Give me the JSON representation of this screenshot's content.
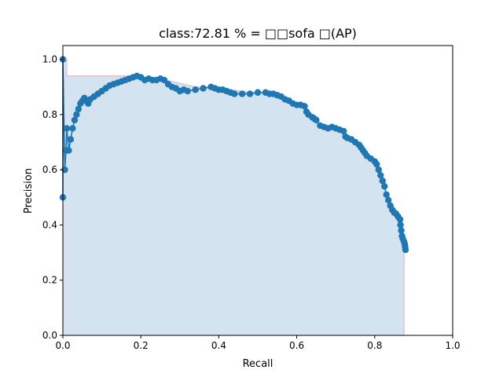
{
  "chart_data": {
    "type": "line",
    "title": "class:72.81 % = □□sofa □(AP)",
    "xlabel": "Recall",
    "ylabel": "Precision",
    "xlim": [
      0,
      1
    ],
    "ylim": [
      0,
      1.05
    ],
    "xticks": [
      "0.0",
      "0.2",
      "0.4",
      "0.6",
      "0.8",
      "1.0"
    ],
    "yticks": [
      "0.0",
      "0.2",
      "0.4",
      "0.6",
      "0.8",
      "1.0"
    ],
    "series": [
      {
        "color": "#1f77b4",
        "marker": "circle",
        "points": [
          [
            0.0,
            0.5
          ],
          [
            0.0,
            1.0
          ],
          [
            0.005,
            0.6
          ],
          [
            0.008,
            0.67
          ],
          [
            0.01,
            0.75
          ],
          [
            0.015,
            0.67
          ],
          [
            0.02,
            0.71
          ],
          [
            0.025,
            0.75
          ],
          [
            0.03,
            0.78
          ],
          [
            0.035,
            0.8
          ],
          [
            0.04,
            0.82
          ],
          [
            0.045,
            0.84
          ],
          [
            0.05,
            0.85
          ],
          [
            0.055,
            0.86
          ],
          [
            0.06,
            0.85
          ],
          [
            0.065,
            0.84
          ],
          [
            0.07,
            0.855
          ],
          [
            0.08,
            0.865
          ],
          [
            0.09,
            0.875
          ],
          [
            0.1,
            0.885
          ],
          [
            0.11,
            0.895
          ],
          [
            0.12,
            0.905
          ],
          [
            0.13,
            0.91
          ],
          [
            0.14,
            0.915
          ],
          [
            0.15,
            0.92
          ],
          [
            0.16,
            0.925
          ],
          [
            0.17,
            0.93
          ],
          [
            0.18,
            0.935
          ],
          [
            0.19,
            0.94
          ],
          [
            0.2,
            0.935
          ],
          [
            0.21,
            0.925
          ],
          [
            0.22,
            0.93
          ],
          [
            0.23,
            0.925
          ],
          [
            0.24,
            0.925
          ],
          [
            0.25,
            0.93
          ],
          [
            0.26,
            0.925
          ],
          [
            0.27,
            0.91
          ],
          [
            0.28,
            0.9
          ],
          [
            0.29,
            0.895
          ],
          [
            0.3,
            0.885
          ],
          [
            0.31,
            0.89
          ],
          [
            0.32,
            0.885
          ],
          [
            0.34,
            0.89
          ],
          [
            0.36,
            0.895
          ],
          [
            0.38,
            0.9
          ],
          [
            0.39,
            0.895
          ],
          [
            0.4,
            0.89
          ],
          [
            0.41,
            0.89
          ],
          [
            0.42,
            0.885
          ],
          [
            0.43,
            0.88
          ],
          [
            0.44,
            0.875
          ],
          [
            0.46,
            0.875
          ],
          [
            0.48,
            0.875
          ],
          [
            0.5,
            0.88
          ],
          [
            0.52,
            0.88
          ],
          [
            0.53,
            0.875
          ],
          [
            0.54,
            0.875
          ],
          [
            0.55,
            0.87
          ],
          [
            0.56,
            0.865
          ],
          [
            0.57,
            0.855
          ],
          [
            0.58,
            0.85
          ],
          [
            0.59,
            0.84
          ],
          [
            0.6,
            0.835
          ],
          [
            0.61,
            0.835
          ],
          [
            0.62,
            0.83
          ],
          [
            0.625,
            0.81
          ],
          [
            0.63,
            0.8
          ],
          [
            0.64,
            0.79
          ],
          [
            0.645,
            0.785
          ],
          [
            0.65,
            0.78
          ],
          [
            0.66,
            0.76
          ],
          [
            0.67,
            0.755
          ],
          [
            0.68,
            0.75
          ],
          [
            0.69,
            0.755
          ],
          [
            0.7,
            0.75
          ],
          [
            0.71,
            0.745
          ],
          [
            0.72,
            0.74
          ],
          [
            0.725,
            0.72
          ],
          [
            0.73,
            0.715
          ],
          [
            0.74,
            0.71
          ],
          [
            0.75,
            0.7
          ],
          [
            0.76,
            0.69
          ],
          [
            0.765,
            0.68
          ],
          [
            0.77,
            0.67
          ],
          [
            0.775,
            0.66
          ],
          [
            0.78,
            0.65
          ],
          [
            0.79,
            0.64
          ],
          [
            0.8,
            0.63
          ],
          [
            0.805,
            0.62
          ],
          [
            0.81,
            0.6
          ],
          [
            0.815,
            0.58
          ],
          [
            0.82,
            0.56
          ],
          [
            0.825,
            0.54
          ],
          [
            0.83,
            0.51
          ],
          [
            0.835,
            0.49
          ],
          [
            0.84,
            0.47
          ],
          [
            0.845,
            0.455
          ],
          [
            0.85,
            0.445
          ],
          [
            0.855,
            0.44
          ],
          [
            0.86,
            0.43
          ],
          [
            0.865,
            0.42
          ],
          [
            0.866,
            0.4
          ],
          [
            0.868,
            0.38
          ],
          [
            0.87,
            0.36
          ],
          [
            0.872,
            0.35
          ],
          [
            0.875,
            0.34
          ],
          [
            0.877,
            0.33
          ],
          [
            0.878,
            0.32
          ],
          [
            0.879,
            0.31
          ]
        ]
      }
    ],
    "ap_envelope": {
      "fill_color": "#d4e3f0",
      "edge_color": "#e8b8c4",
      "points": [
        [
          0.0,
          1.0
        ],
        [
          0.01,
          1.0
        ],
        [
          0.01,
          0.94
        ],
        [
          0.19,
          0.94
        ],
        [
          0.19,
          0.935
        ],
        [
          0.25,
          0.93
        ],
        [
          0.34,
          0.9
        ],
        [
          0.38,
          0.9
        ],
        [
          0.48,
          0.88
        ],
        [
          0.52,
          0.88
        ],
        [
          0.56,
          0.87
        ],
        [
          0.6,
          0.835
        ],
        [
          0.62,
          0.83
        ],
        [
          0.64,
          0.79
        ],
        [
          0.66,
          0.76
        ],
        [
          0.7,
          0.755
        ],
        [
          0.72,
          0.74
        ],
        [
          0.75,
          0.7
        ],
        [
          0.78,
          0.65
        ],
        [
          0.8,
          0.63
        ],
        [
          0.82,
          0.56
        ],
        [
          0.84,
          0.47
        ],
        [
          0.86,
          0.43
        ],
        [
          0.875,
          0.34
        ],
        [
          0.877,
          0.33
        ],
        [
          0.879,
          0.31
        ],
        [
          0.875,
          0.31
        ]
      ]
    },
    "grid": false,
    "legend": "none"
  }
}
